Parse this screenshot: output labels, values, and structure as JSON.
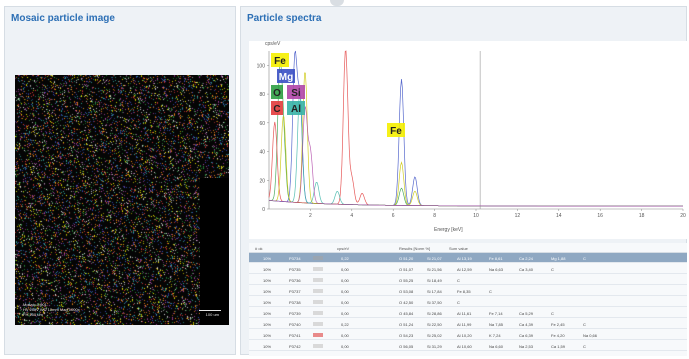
{
  "left_panel": {
    "title": "Mosaic particle image",
    "info_lines": [
      "Mosaic 0.001",
      "HV 20kV  WD 10mm  Mag 1000x",
      "FH 250 um"
    ],
    "scale_label": "100 um"
  },
  "right_panel": {
    "title": "Particle spectra"
  },
  "chart_data": {
    "type": "line",
    "ylabel": "cps/eV",
    "xlabel": "Energy [keV]",
    "xlim": [
      0,
      20
    ],
    "ylim": [
      0,
      110
    ],
    "x_ticks": [
      2,
      4,
      6,
      8,
      10,
      12,
      14,
      16,
      18,
      20
    ],
    "y_ticks": [
      0,
      20,
      40,
      60,
      80,
      100
    ],
    "element_labels": [
      "Fe",
      "Mg",
      "O",
      "Si",
      "C",
      "Al",
      "Fe"
    ],
    "element_colors": [
      "#f5f000",
      "#3a4fc4",
      "#2f9e44",
      "#b046a8",
      "#e23b3b",
      "#37b3a6",
      "#f5f000"
    ],
    "series": [
      {
        "color": "#2f9e44",
        "peaks": [
          [
            0.52,
            85
          ],
          [
            0.7,
            40
          ],
          [
            6.4,
            12
          ]
        ]
      },
      {
        "color": "#e23b3b",
        "peaks": [
          [
            0.28,
            55
          ],
          [
            3.7,
            108
          ],
          [
            4.0,
            18
          ],
          [
            4.5,
            8
          ]
        ]
      },
      {
        "color": "#3a4fc4",
        "peaks": [
          [
            1.25,
            100
          ],
          [
            1.5,
            70
          ],
          [
            6.4,
            88
          ],
          [
            7.05,
            20
          ]
        ]
      },
      {
        "color": "#c9c400",
        "peaks": [
          [
            0.7,
            60
          ],
          [
            1.74,
            92
          ],
          [
            6.4,
            30
          ],
          [
            7.05,
            10
          ]
        ]
      },
      {
        "color": "#37b3a6",
        "peaks": [
          [
            1.49,
            78
          ],
          [
            2.3,
            15
          ],
          [
            3.3,
            9
          ]
        ]
      },
      {
        "color": "#b046a8",
        "peaks": [
          [
            1.74,
            65
          ],
          [
            2.0,
            35
          ]
        ]
      }
    ]
  },
  "table": {
    "headers": [
      "# ok",
      "cps/eV",
      "Results [Norm %]",
      "Sum value"
    ],
    "rows": [
      {
        "id": "10%",
        "name": "P3734",
        "swatch": "#9aa5b1",
        "sum": "0,22",
        "c1": "O 51,20",
        "c2": "Si 21,07",
        "c3": "Al 13,19",
        "c4": "Fe 8,61",
        "c5": "Ca 2,24",
        "c6": "Mg 1,88",
        "c7": "C",
        "selected": true
      },
      {
        "id": "10%",
        "name": "P3735",
        "swatch": "#d9d9d9",
        "sum": "0,00",
        "c1": "O 51,07",
        "c2": "Si 21,56",
        "c3": "Al 12,59",
        "c4": "Na 6,63",
        "c5": "Ca 3,40",
        "c6": "C",
        "c7": "",
        "selected": false
      },
      {
        "id": "10%",
        "name": "P3736",
        "swatch": "#d9d9d9",
        "sum": "0,00",
        "c1": "O 55,25",
        "c2": "Si 18,49",
        "c3": "C",
        "c4": "",
        "c5": "",
        "c6": "",
        "c7": "",
        "selected": false
      },
      {
        "id": "10%",
        "name": "P3737",
        "swatch": "#d9d9d9",
        "sum": "0,00",
        "c1": "O 53,08",
        "c2": "Si 17,84",
        "c3": "Fe 8,35",
        "c4": "C",
        "c5": "",
        "c6": "",
        "c7": "",
        "selected": false
      },
      {
        "id": "10%",
        "name": "P3738",
        "swatch": "#d9d9d9",
        "sum": "0,00",
        "c1": "O 42,50",
        "c2": "Si 37,50",
        "c3": "C",
        "c4": "",
        "c5": "",
        "c6": "",
        "c7": "",
        "selected": false
      },
      {
        "id": "10%",
        "name": "P3739",
        "swatch": "#d9d9d9",
        "sum": "0,00",
        "c1": "O 45,84",
        "c2": "Si 28,86",
        "c3": "Al 11,61",
        "c4": "Fe 7,14",
        "c5": "Ca 5,29",
        "c6": "C",
        "c7": "",
        "selected": false
      },
      {
        "id": "10%",
        "name": "P3740",
        "swatch": "#d9d9d9",
        "sum": "0,22",
        "c1": "O 51,24",
        "c2": "Si 22,50",
        "c3": "Al 11,99",
        "c4": "Na 7,85",
        "c5": "Ca 4,39",
        "c6": "Fe 2,45",
        "c7": "C",
        "selected": false
      },
      {
        "id": "10%",
        "name": "P3741",
        "swatch": "#e88a8a",
        "sum": "0,00",
        "c1": "O 54,23",
        "c2": "Si 25,02",
        "c3": "Al 10,20",
        "c4": "K 7,24",
        "c5": "Ca 6,39",
        "c6": "Fe 4,20",
        "c7": "Na 0,66",
        "selected": false
      },
      {
        "id": "10%",
        "name": "P3742",
        "swatch": "#d9d9d9",
        "sum": "0,00",
        "c1": "O 56,05",
        "c2": "Si 31,29",
        "c3": "Al 10,60",
        "c4": "Na 6,60",
        "c5": "Na 2,53",
        "c6": "Ca 1,59",
        "c7": "C",
        "selected": false
      }
    ]
  }
}
